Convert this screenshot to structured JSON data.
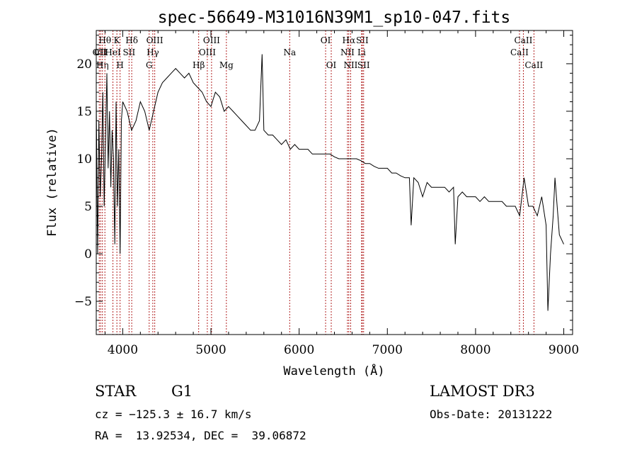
{
  "chart_data": {
    "type": "line",
    "title": "spec-56649-M31016N39M1_sp10-047.fits",
    "xlabel": "Wavelength (Å)",
    "ylabel": "Flux (relative)",
    "xlim": [
      3700,
      9100
    ],
    "ylim": [
      -8.5,
      23.5
    ],
    "xticks": [
      4000,
      5000,
      6000,
      7000,
      8000,
      9000
    ],
    "yticks": [
      -5,
      0,
      5,
      10,
      15,
      20
    ],
    "xtick_labels": [
      "4000",
      "5000",
      "6000",
      "7000",
      "8000",
      "9000"
    ],
    "ytick_labels": [
      "−5",
      "0",
      "5",
      "10",
      "15",
      "20"
    ],
    "lines": [
      {
        "wave": 3734,
        "label": "OII",
        "row": 2
      },
      {
        "wave": 3750,
        "label": "CII",
        "row": 2
      },
      {
        "wave": 3770,
        "label": "Hη",
        "row": 3
      },
      {
        "wave": 3798,
        "label": "Hθ",
        "row": 1
      },
      {
        "wave": 3889,
        "label": "HeI",
        "row": 2
      },
      {
        "wave": 3934,
        "label": "K",
        "row": 1
      },
      {
        "wave": 3970,
        "label": "H",
        "row": 3
      },
      {
        "wave": 4072,
        "label": "SII",
        "row": 2
      },
      {
        "wave": 4102,
        "label": "Hδ",
        "row": 1
      },
      {
        "wave": 4300,
        "label": "G",
        "row": 3
      },
      {
        "wave": 4341,
        "label": "Hγ",
        "row": 2
      },
      {
        "wave": 4363,
        "label": "OIII",
        "row": 1
      },
      {
        "wave": 4861,
        "label": "Hβ",
        "row": 3
      },
      {
        "wave": 4959,
        "label": "OIII",
        "row": 2
      },
      {
        "wave": 5007,
        "label": "OIII",
        "row": 1
      },
      {
        "wave": 5175,
        "label": "Mg",
        "row": 3
      },
      {
        "wave": 5893,
        "label": "Na",
        "row": 2
      },
      {
        "wave": 6300,
        "label": "OI",
        "row": 1
      },
      {
        "wave": 6364,
        "label": "OI",
        "row": 3
      },
      {
        "wave": 6548,
        "label": "NII",
        "row": 2
      },
      {
        "wave": 6563,
        "label": "Hα",
        "row": 1
      },
      {
        "wave": 6584,
        "label": "NII",
        "row": 3
      },
      {
        "wave": 6708,
        "label": "Li",
        "row": 2
      },
      {
        "wave": 6716,
        "label": "SII",
        "row": 1
      },
      {
        "wave": 6731,
        "label": "SII",
        "row": 3
      },
      {
        "wave": 8498,
        "label": "CaII",
        "row": 2
      },
      {
        "wave": 8542,
        "label": "CaII",
        "row": 1
      },
      {
        "wave": 8662,
        "label": "CaII",
        "row": 3
      }
    ],
    "series": [
      {
        "name": "spectrum",
        "x": [
          3700,
          3715,
          3730,
          3745,
          3760,
          3775,
          3790,
          3805,
          3820,
          3835,
          3850,
          3865,
          3880,
          3895,
          3910,
          3925,
          3940,
          3955,
          3970,
          3985,
          4000,
          4050,
          4100,
          4150,
          4200,
          4250,
          4300,
          4350,
          4400,
          4450,
          4500,
          4550,
          4600,
          4650,
          4700,
          4750,
          4800,
          4850,
          4900,
          4950,
          5000,
          5050,
          5100,
          5150,
          5200,
          5250,
          5300,
          5350,
          5400,
          5450,
          5500,
          5550,
          5580,
          5600,
          5650,
          5700,
          5750,
          5800,
          5850,
          5900,
          5950,
          6000,
          6050,
          6100,
          6150,
          6200,
          6250,
          6300,
          6350,
          6400,
          6450,
          6500,
          6550,
          6600,
          6650,
          6700,
          6750,
          6800,
          6850,
          6900,
          6950,
          7000,
          7050,
          7100,
          7150,
          7200,
          7250,
          7270,
          7300,
          7350,
          7400,
          7450,
          7500,
          7550,
          7600,
          7650,
          7700,
          7750,
          7770,
          7800,
          7850,
          7900,
          7950,
          8000,
          8050,
          8100,
          8150,
          8200,
          8250,
          8300,
          8350,
          8400,
          8450,
          8500,
          8550,
          8600,
          8650,
          8700,
          8750,
          8800,
          8820,
          8850,
          8880,
          8900,
          8950,
          9000
        ],
        "y": [
          16,
          0,
          14,
          6,
          10,
          17,
          5,
          12,
          19,
          9,
          15,
          7,
          13,
          10,
          1,
          16,
          5,
          11,
          0,
          14,
          16,
          15,
          13,
          14,
          16,
          15,
          13,
          15,
          17,
          18,
          18.5,
          19,
          19.5,
          19,
          18.5,
          19,
          18,
          17.5,
          17,
          16,
          15.5,
          17,
          16.5,
          15,
          15.5,
          15,
          14.5,
          14,
          13.5,
          13,
          13,
          14,
          21,
          13,
          12.5,
          12.5,
          12,
          11.5,
          12,
          11,
          11.5,
          11,
          11,
          11,
          10.5,
          10.5,
          10.5,
          10.5,
          10.5,
          10.2,
          10,
          10,
          10,
          10,
          10,
          9.8,
          9.5,
          9.5,
          9.2,
          9,
          9,
          9,
          8.5,
          8.5,
          8.2,
          8,
          8,
          3,
          8,
          7.5,
          6,
          7.5,
          7,
          7,
          7,
          7,
          6.5,
          7,
          1,
          6,
          6.5,
          6,
          6,
          6,
          5.5,
          6,
          5.5,
          5.5,
          5.5,
          5.5,
          5,
          5,
          5,
          4,
          8,
          5,
          5,
          4,
          6,
          3,
          -6,
          0,
          4,
          8,
          2,
          1
        ]
      }
    ]
  },
  "footer": {
    "object_type": "STAR",
    "subclass": "G1",
    "survey": "LAMOST DR3",
    "cz": "cz = −125.3 ± 16.7 km/s",
    "obs_date": "Obs-Date: 20131222",
    "coords": "RA =  13.92534, DEC =  39.06872"
  }
}
